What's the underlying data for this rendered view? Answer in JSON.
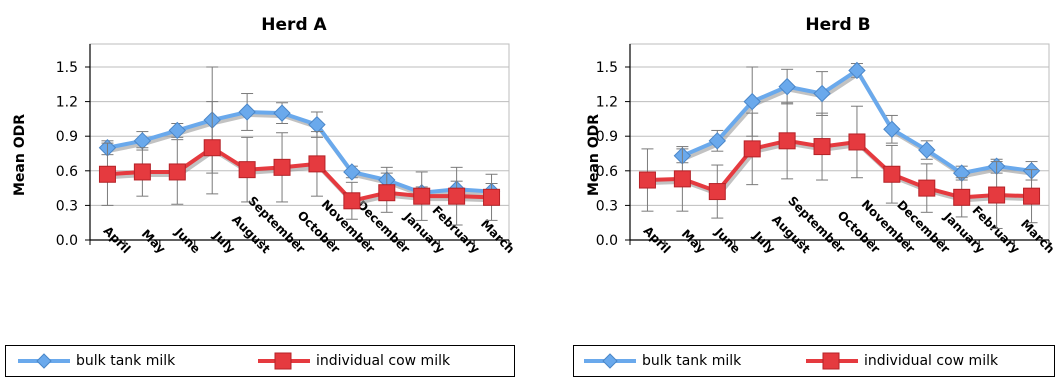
{
  "chart_data": [
    {
      "type": "line",
      "title": "Herd A",
      "ylabel": "Mean ODR",
      "xlabel": "",
      "ylim": [
        0,
        1.5
      ],
      "yticks": [
        "0.0",
        "0.3",
        "0.6",
        "0.9",
        "1.2",
        "1.5"
      ],
      "categories": [
        "April",
        "May",
        "June",
        "July",
        "August",
        "September",
        "October",
        "November",
        "December",
        "January",
        "February",
        "March"
      ],
      "grid": true,
      "legend_position": "bottom",
      "series": [
        {
          "name": "bulk tank milk",
          "color": "#6aa9ec",
          "marker": "diamond",
          "values": [
            0.8,
            0.86,
            0.95,
            1.04,
            1.11,
            1.1,
            1.0,
            0.59,
            0.52,
            0.41,
            0.44,
            0.42
          ],
          "err": [
            0.06,
            0.08,
            0.06,
            0.46,
            0.16,
            0.09,
            0.11,
            0.05,
            0.11,
            0.05,
            0.07,
            0.07
          ]
        },
        {
          "name": "individual cow milk",
          "color": "#e53a3f",
          "marker": "square",
          "values": [
            0.57,
            0.59,
            0.59,
            0.8,
            0.61,
            0.63,
            0.66,
            0.34,
            0.41,
            0.38,
            0.38,
            0.37
          ],
          "err": [
            0.27,
            0.21,
            0.28,
            0.4,
            0.28,
            0.3,
            0.28,
            0.16,
            0.17,
            0.21,
            0.25,
            0.2
          ]
        }
      ]
    },
    {
      "type": "line",
      "title": "Herd B",
      "ylabel": "Mean ODR",
      "xlabel": "",
      "ylim": [
        0,
        1.5
      ],
      "yticks": [
        "0.0",
        "0.3",
        "0.6",
        "0.9",
        "1.2",
        "1.5"
      ],
      "categories": [
        "April",
        "May",
        "June",
        "July",
        "August",
        "September",
        "October",
        "November",
        "December",
        "January",
        "February",
        "March"
      ],
      "grid": true,
      "legend_position": "bottom",
      "series": [
        {
          "name": "bulk tank milk",
          "color": "#6aa9ec",
          "marker": "diamond",
          "values": [
            null,
            0.73,
            0.86,
            1.2,
            1.33,
            1.27,
            1.47,
            0.96,
            0.78,
            0.58,
            0.64,
            0.6
          ],
          "err": [
            null,
            0.06,
            0.09,
            0.3,
            0.15,
            0.19,
            0.06,
            0.12,
            0.08,
            0.06,
            0.06,
            0.08
          ]
        },
        {
          "name": "individual cow milk",
          "color": "#e53a3f",
          "marker": "square",
          "values": [
            0.52,
            0.53,
            0.42,
            0.79,
            0.86,
            0.81,
            0.85,
            0.57,
            0.45,
            0.37,
            0.39,
            0.38
          ],
          "err": [
            0.27,
            0.28,
            0.23,
            0.31,
            0.33,
            0.29,
            0.31,
            0.25,
            0.21,
            0.17,
            0.29,
            0.23
          ]
        }
      ]
    }
  ]
}
